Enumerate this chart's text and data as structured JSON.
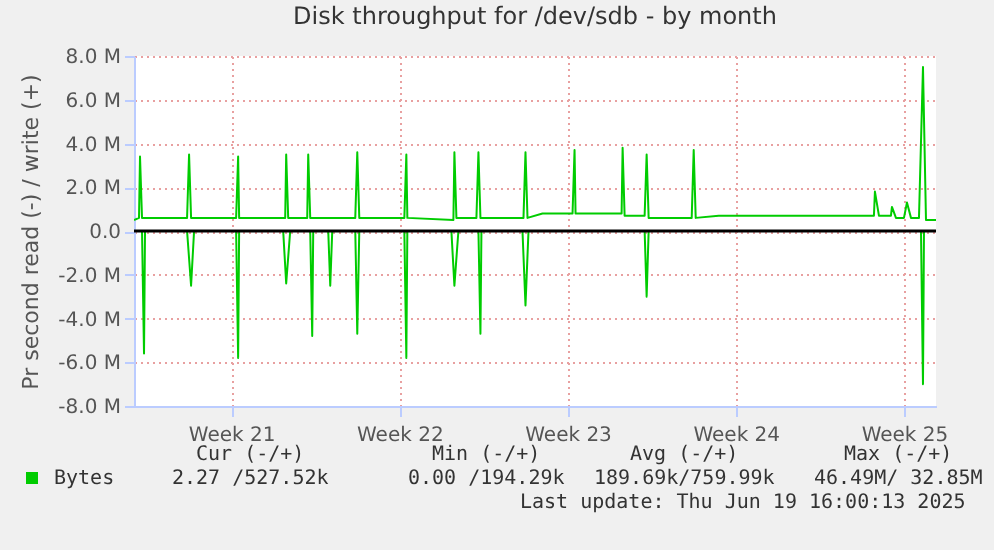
{
  "chart_data": {
    "type": "line",
    "title": "Disk throughput for /dev/sdb - by month",
    "ylabel": "Pr second read (-) / write (+)",
    "xlim": [
      "2025-05-17T11:00",
      "2025-06-19T20:00"
    ],
    "xticks": [
      {
        "value": "2025-05-21T12:00",
        "label": "Week 21"
      },
      {
        "value": "2025-05-28T12:00",
        "label": "Week 22"
      },
      {
        "value": "2025-06-04T12:00",
        "label": "Week 23"
      },
      {
        "value": "2025-06-11T12:00",
        "label": "Week 24"
      },
      {
        "value": "2025-06-18T12:00",
        "label": "Week 25"
      }
    ],
    "ylim": [
      -8,
      8
    ],
    "yticks": [
      {
        "value": -8,
        "label": "-8.0 M"
      },
      {
        "value": -6,
        "label": "-6.0 M"
      },
      {
        "value": -4,
        "label": "-4.0 M"
      },
      {
        "value": -2,
        "label": "-2.0 M"
      },
      {
        "value": 0,
        "label": "0.0"
      },
      {
        "value": 2,
        "label": "2.0 M"
      },
      {
        "value": 4,
        "label": "4.0 M"
      },
      {
        "value": 6,
        "label": "6.0 M"
      },
      {
        "value": 8,
        "label": "8.0 M"
      }
    ],
    "grid": true,
    "legend": "bottom left",
    "ref_lines": [
      {
        "axis": "y",
        "value": 0,
        "color": "#000000"
      }
    ],
    "series": [
      {
        "name": "Bytes",
        "color": "#00cc00",
        "x": [
          "2025-05-17T11:00",
          "2025-05-17T16:00",
          "2025-05-17T17:00",
          "2025-05-17T19:00",
          "2025-05-19T16:00",
          "2025-05-19T18:00",
          "2025-05-19T20:00",
          "2025-05-21T17:00",
          "2025-05-21T19:00",
          "2025-05-21T20:00",
          "2025-05-23T18:00",
          "2025-05-23T19:00",
          "2025-05-23T21:00",
          "2025-05-24T16:00",
          "2025-05-24T17:00",
          "2025-05-24T19:00",
          "2025-05-26T16:00",
          "2025-05-26T18:00",
          "2025-05-26T20:00",
          "2025-05-28T17:00",
          "2025-05-28T19:00",
          "2025-05-28T20:00",
          "2025-05-30T18:00",
          "2025-05-30T19:00",
          "2025-05-30T21:00",
          "2025-05-31T17:00",
          "2025-05-31T19:00",
          "2025-05-31T21:00",
          "2025-06-02T16:00",
          "2025-06-02T18:00",
          "2025-06-02T20:00",
          "2025-06-03T11:00",
          "2025-06-04T17:00",
          "2025-06-04T19:00",
          "2025-06-04T20:00",
          "2025-06-05T22:00",
          "2025-06-06T18:00",
          "2025-06-06T19:00",
          "2025-06-06T21:00",
          "2025-06-07T17:00",
          "2025-06-07T19:00",
          "2025-06-07T21:00",
          "2025-06-09T16:00",
          "2025-06-09T18:00",
          "2025-06-09T20:00",
          "2025-06-10T19:00",
          "2025-06-12T22:00",
          "2025-06-15T17:00",
          "2025-06-17T06:00",
          "2025-06-17T07:00",
          "2025-06-17T11:00",
          "2025-06-17T23:00",
          "2025-06-18T00:00",
          "2025-06-18T04:00",
          "2025-06-18T12:00",
          "2025-06-18T15:00",
          "2025-06-18T19:00",
          "2025-06-19T03:00",
          "2025-06-19T07:00",
          "2025-06-19T10:00",
          "2025-06-19T20:00"
        ],
        "values": [
          0.5,
          0.6,
          3.4,
          0.6,
          0.6,
          3.5,
          0.6,
          0.6,
          3.4,
          0.6,
          0.6,
          3.5,
          0.6,
          0.6,
          3.5,
          0.6,
          0.6,
          3.6,
          0.6,
          0.6,
          3.5,
          0.6,
          0.5,
          3.6,
          0.6,
          0.6,
          3.6,
          0.6,
          0.6,
          3.6,
          0.6,
          0.8,
          0.8,
          3.7,
          0.8,
          0.8,
          0.8,
          3.8,
          0.7,
          0.7,
          3.5,
          0.6,
          0.6,
          3.7,
          0.6,
          0.7,
          0.7,
          0.7,
          0.7,
          1.8,
          0.7,
          0.7,
          1.1,
          0.6,
          0.6,
          1.3,
          0.6,
          0.6,
          7.5,
          0.5,
          0.5
        ]
      },
      {
        "color": "#00cc00",
        "x": [
          "2025-05-17T11:00",
          "2025-05-17T19:00",
          "2025-05-17T21:00",
          "2025-05-17T22:00",
          "2025-05-19T16:00",
          "2025-05-19T20:00",
          "2025-05-19T23:00",
          "2025-05-21T17:00",
          "2025-05-21T19:00",
          "2025-05-21T20:00",
          "2025-05-23T16:00",
          "2025-05-23T19:00",
          "2025-05-23T23:00",
          "2025-05-24T19:00",
          "2025-05-24T21:00",
          "2025-05-24T22:00",
          "2025-05-25T13:00",
          "2025-05-25T15:00",
          "2025-05-25T17:00",
          "2025-05-26T16:00",
          "2025-05-26T18:00",
          "2025-05-26T20:00",
          "2025-05-28T17:00",
          "2025-05-28T19:00",
          "2025-05-28T20:00",
          "2025-05-30T16:00",
          "2025-05-30T19:00",
          "2025-05-30T23:00",
          "2025-05-31T19:00",
          "2025-05-31T21:00",
          "2025-05-31T22:00",
          "2025-06-02T15:00",
          "2025-06-02T18:00",
          "2025-06-02T21:00",
          "2025-06-07T17:00",
          "2025-06-07T19:00",
          "2025-06-07T21:00",
          "2025-06-19T05:00",
          "2025-06-19T07:00",
          "2025-06-19T08:00",
          "2025-06-19T20:00"
        ],
        "values": [
          0,
          0,
          -5.6,
          0,
          0,
          -2.5,
          0,
          0,
          -5.8,
          0,
          0,
          -2.4,
          0,
          0,
          -4.8,
          0,
          0,
          -2.5,
          0,
          0,
          -4.7,
          0,
          0,
          -5.8,
          0,
          0,
          -2.5,
          0,
          0,
          -4.7,
          0,
          0,
          -3.4,
          0,
          0,
          -3.0,
          0,
          0,
          -7.0,
          0,
          0
        ]
      }
    ],
    "annotations": [
      "Cur (-/+)",
      "Min (-/+)",
      "Avg (-/+)",
      "Max (-/+)",
      "2.27 /527.52k",
      "0.00 /194.29k",
      "189.69k/759.99k",
      "46.49M/ 32.85M",
      "Last update: Thu Jun 19 16:00:13 2025"
    ]
  }
}
